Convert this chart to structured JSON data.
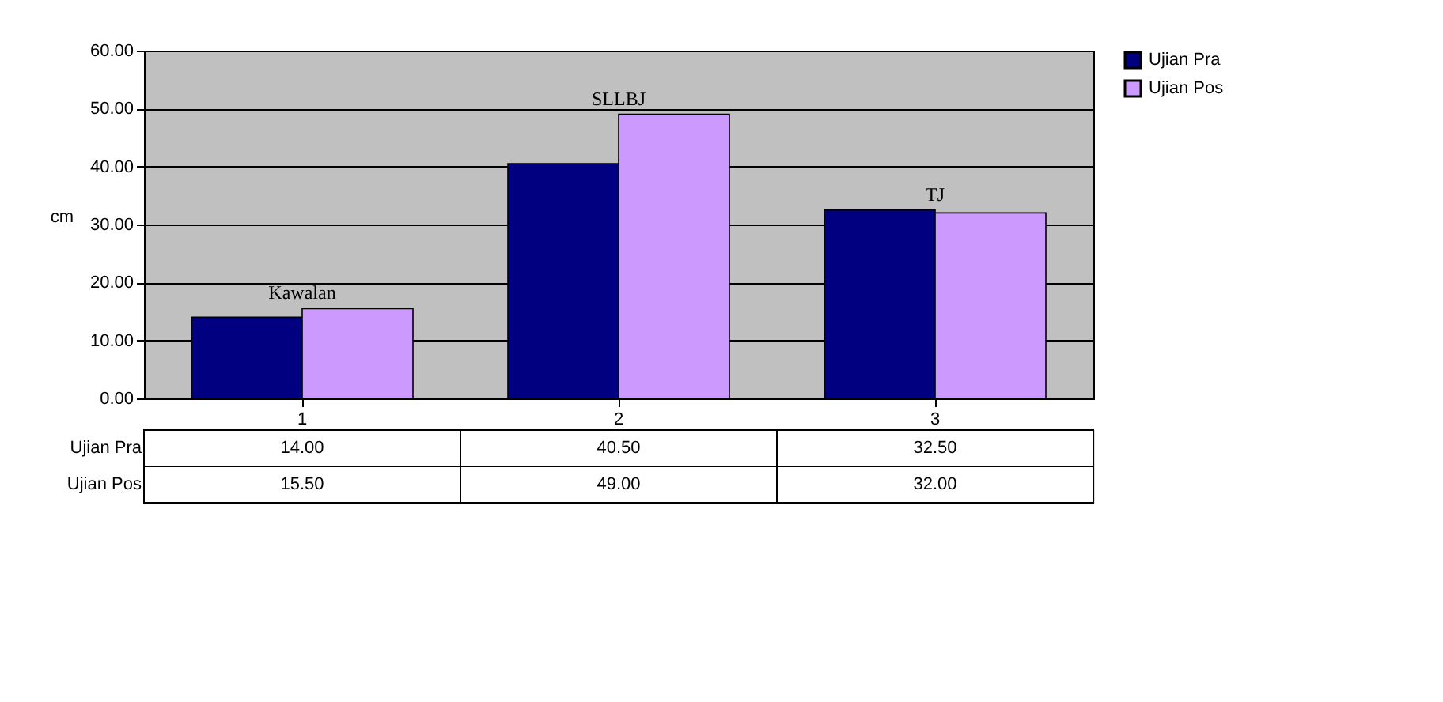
{
  "chart_data": {
    "type": "bar",
    "ylabel": "cm",
    "categories": [
      "1",
      "2",
      "3"
    ],
    "series": [
      {
        "name": "Ujian Pra",
        "color": "#000080",
        "values": [
          14.0,
          40.5,
          32.5
        ],
        "value_labels": [
          "14.00",
          "40.50",
          "32.50"
        ]
      },
      {
        "name": "Ujian Pos",
        "color": "#cc99ff",
        "values": [
          15.5,
          49.0,
          32.0
        ],
        "value_labels": [
          "15.50",
          "49.00",
          "32.00"
        ]
      }
    ],
    "annotations": [
      "Kawalan",
      "SLLBJ",
      "TJ"
    ],
    "ylim": [
      0,
      60
    ],
    "yticks": [
      {
        "value": 0,
        "label": "0.00"
      },
      {
        "value": 10,
        "label": "10.00"
      },
      {
        "value": 20,
        "label": "20.00"
      },
      {
        "value": 30,
        "label": "30.00"
      },
      {
        "value": 40,
        "label": "40.00"
      },
      {
        "value": 50,
        "label": "50.00"
      },
      {
        "value": 60,
        "label": "60.00"
      }
    ],
    "grid": "y",
    "legend": "right"
  }
}
